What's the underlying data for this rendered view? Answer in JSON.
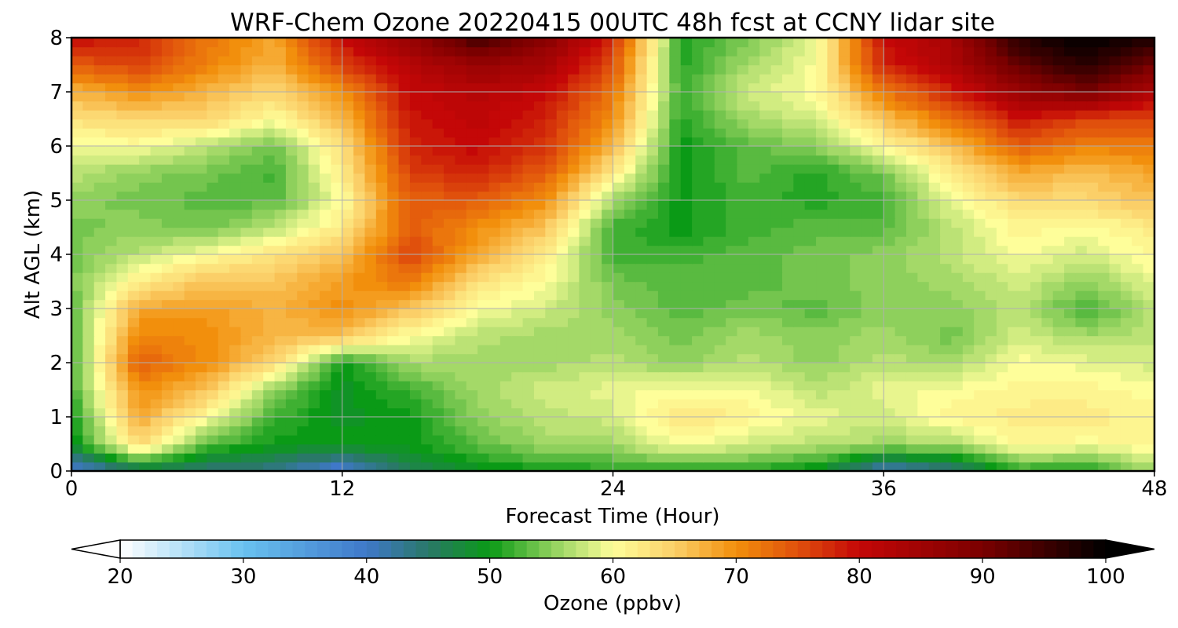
{
  "chart_data": {
    "type": "heatmap",
    "title": "WRF-Chem Ozone  20220415 00UTC 48h fcst at CCNY lidar site",
    "xlabel": "Forecast Time (Hour)",
    "ylabel": "Alt AGL (km)",
    "xlim": [
      0,
      48
    ],
    "ylim": [
      0,
      8
    ],
    "xticks": [
      0,
      12,
      24,
      36,
      48
    ],
    "yticks": [
      0,
      1,
      2,
      3,
      4,
      5,
      6,
      7,
      8
    ],
    "grid": true,
    "x": [
      0,
      3,
      6,
      9,
      12,
      15,
      18,
      21,
      24,
      27,
      30,
      33,
      36,
      39,
      42,
      45,
      48
    ],
    "y": [
      0,
      0.5,
      1,
      1.5,
      2,
      2.5,
      3,
      3.5,
      4,
      4.5,
      5,
      5.5,
      6,
      6.5,
      7,
      7.5,
      8
    ],
    "z": [
      [
        38,
        45,
        44,
        43,
        38,
        46,
        49,
        50,
        51,
        51,
        51,
        49,
        40,
        43,
        51,
        50,
        56
      ],
      [
        49,
        64,
        53,
        50,
        50,
        50,
        53,
        56,
        56,
        60,
        58,
        57,
        56,
        56,
        61,
        60,
        61
      ],
      [
        50,
        68,
        60,
        52,
        49,
        50,
        55,
        57,
        58,
        63,
        61,
        59,
        58,
        61,
        62,
        62,
        61
      ],
      [
        52,
        70,
        66,
        55,
        49,
        52,
        56,
        58,
        59,
        60,
        60,
        57,
        59,
        60,
        61,
        61,
        60
      ],
      [
        52,
        74,
        70,
        64,
        50,
        56,
        56,
        56,
        57,
        55,
        57,
        55,
        57,
        56,
        60,
        59,
        58
      ],
      [
        52,
        71,
        70,
        67,
        66,
        60,
        57,
        56,
        56,
        54,
        56,
        55,
        56,
        54,
        58,
        56,
        57
      ],
      [
        53,
        68,
        69,
        67,
        70,
        66,
        60,
        58,
        55,
        53,
        54,
        53,
        55,
        55,
        57,
        52,
        57
      ],
      [
        54,
        62,
        66,
        66,
        69,
        72,
        63,
        60,
        54,
        53,
        53,
        54,
        55,
        56,
        58,
        55,
        59
      ],
      [
        54,
        57,
        60,
        63,
        66,
        76,
        68,
        62,
        52,
        52,
        53,
        54,
        55,
        57,
        60,
        58,
        61
      ],
      [
        54,
        55,
        54,
        57,
        62,
        74,
        70,
        66,
        52,
        50,
        52,
        53,
        53,
        57,
        61,
        60,
        62
      ],
      [
        55,
        54,
        53,
        53,
        60,
        74,
        74,
        70,
        56,
        50,
        52,
        51,
        52,
        59,
        64,
        64,
        66
      ],
      [
        57,
        55,
        54,
        52,
        62,
        76,
        78,
        74,
        62,
        50,
        53,
        51,
        54,
        62,
        68,
        66,
        68
      ],
      [
        59,
        60,
        57,
        54,
        63,
        78,
        80,
        77,
        67,
        50,
        53,
        55,
        60,
        66,
        74,
        71,
        72
      ],
      [
        63,
        64,
        64,
        60,
        67,
        79,
        81,
        78,
        70,
        51,
        56,
        58,
        66,
        72,
        79,
        76,
        75
      ],
      [
        67,
        70,
        67,
        64,
        70,
        80,
        82,
        80,
        72,
        52,
        58,
        60,
        72,
        78,
        86,
        90,
        83
      ],
      [
        74,
        76,
        71,
        67,
        76,
        82,
        86,
        84,
        75,
        51,
        56,
        60,
        78,
        83,
        92,
        97,
        90
      ],
      [
        80,
        78,
        72,
        68,
        80,
        86,
        95,
        88,
        78,
        51,
        54,
        59,
        80,
        84,
        97,
        100,
        98
      ]
    ],
    "colorbar": {
      "label": "Ozone  (ppbv)",
      "min": 20,
      "max": 100,
      "ticks": [
        20,
        30,
        40,
        50,
        60,
        70,
        80,
        90,
        100
      ],
      "extend": "both",
      "stops": [
        {
          "v": 20,
          "c": "#ffffff"
        },
        {
          "v": 30,
          "c": "#69c2f0"
        },
        {
          "v": 40,
          "c": "#3f78c9"
        },
        {
          "v": 45,
          "c": "#2a7868"
        },
        {
          "v": 50,
          "c": "#0a9a16"
        },
        {
          "v": 55,
          "c": "#8ed05c"
        },
        {
          "v": 60,
          "c": "#fefe9a"
        },
        {
          "v": 65,
          "c": "#fbcf68"
        },
        {
          "v": 70,
          "c": "#f28f0c"
        },
        {
          "v": 75,
          "c": "#e0500c"
        },
        {
          "v": 80,
          "c": "#c40707"
        },
        {
          "v": 90,
          "c": "#7a0000"
        },
        {
          "v": 100,
          "c": "#000000"
        }
      ]
    }
  }
}
